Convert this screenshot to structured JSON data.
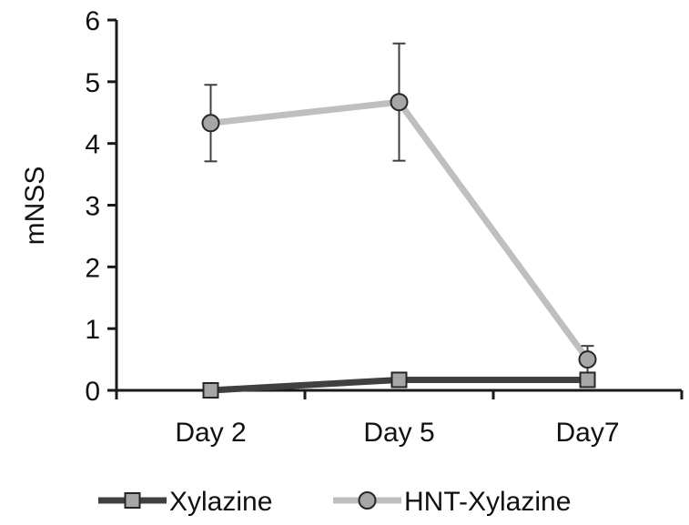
{
  "chart_data": {
    "type": "line",
    "title": "",
    "xlabel": "",
    "ylabel": "mNSS",
    "categories": [
      "Day 2",
      "Day 5",
      "Day7"
    ],
    "ylim": [
      0,
      6
    ],
    "yticks": [
      0,
      1,
      2,
      3,
      4,
      5,
      6
    ],
    "grid": false,
    "legend_position": "bottom",
    "series": [
      {
        "name": "Xylazine",
        "values": [
          0,
          0.17,
          0.17
        ],
        "errors": [
          0,
          0.08,
          0.05
        ],
        "color": "#404040",
        "marker_fill": "#a6a6a6",
        "marker": "square"
      },
      {
        "name": "HNT-Xylazine",
        "values": [
          4.33,
          4.67,
          0.5
        ],
        "errors": [
          0.62,
          0.95,
          0.22
        ],
        "color": "#bfbfbf",
        "marker_fill": "#a6a6a6",
        "marker": "circle"
      }
    ]
  }
}
